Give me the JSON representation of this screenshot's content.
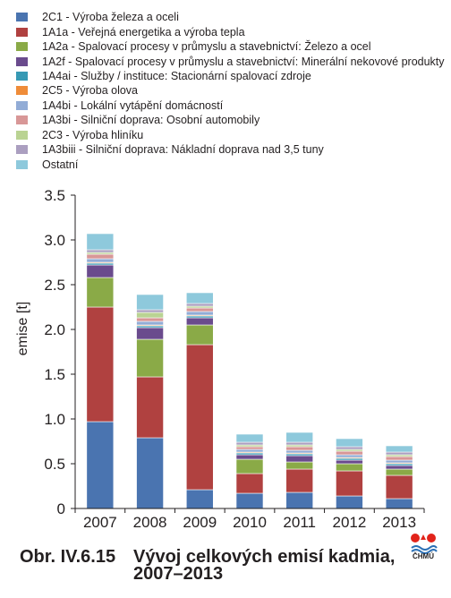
{
  "colors": {
    "2C1": "#4a74b0",
    "1A1a": "#b04140",
    "1A2a": "#8aaa47",
    "1A2f": "#6a4b8d",
    "1A4ai": "#3799b4",
    "2C5": "#ef8c39",
    "1A4bi": "#92acd6",
    "1A3bi": "#d89797",
    "2C3": "#bad393",
    "1A3biii": "#ab9fc0",
    "Ostatni": "#8ec9dc"
  },
  "chart_data": {
    "type": "bar",
    "stacked": true,
    "categories": [
      "2007",
      "2008",
      "2009",
      "2010",
      "2011",
      "2012",
      "2013"
    ],
    "ylabel": "emise [t]",
    "ylim": [
      0,
      3.5
    ],
    "yticks": [
      "0",
      "0.5",
      "1.0",
      "1.5",
      "2.0",
      "2.5",
      "3.0",
      "3.5"
    ],
    "legend_position": "top",
    "series": [
      {
        "key": "2C1",
        "name": "2C1 - Výroba železa a oceli",
        "values": [
          0.97,
          0.79,
          0.21,
          0.17,
          0.18,
          0.14,
          0.11
        ]
      },
      {
        "key": "1A1a",
        "name": "1A1a - Veřejná energetika a výroba tepla",
        "values": [
          1.28,
          0.68,
          1.62,
          0.22,
          0.26,
          0.28,
          0.26
        ]
      },
      {
        "key": "1A2a",
        "name": "1A2a - Spalovací procesy v průmyslu a stavebnictví: Železo a ocel",
        "values": [
          0.33,
          0.42,
          0.22,
          0.16,
          0.08,
          0.08,
          0.07
        ]
      },
      {
        "key": "1A2f",
        "name": "1A2f - Spalovací procesy v průmyslu a stavebnictví: Minerální nekovové produkty",
        "values": [
          0.14,
          0.13,
          0.08,
          0.05,
          0.07,
          0.04,
          0.04
        ]
      },
      {
        "key": "1A4ai",
        "name": "1A4ai - Služby / instituce: Stacionární spalovací zdroje",
        "values": [
          0.02,
          0.02,
          0.02,
          0.02,
          0.02,
          0.02,
          0.02
        ]
      },
      {
        "key": "2C5",
        "name": "2C5 - Výroba olova",
        "values": [
          0.01,
          0.01,
          0.01,
          0.01,
          0.01,
          0.01,
          0.01
        ]
      },
      {
        "key": "1A4bi",
        "name": "1A4bi - Lokální vytápění domácností",
        "values": [
          0.04,
          0.04,
          0.04,
          0.03,
          0.03,
          0.03,
          0.03
        ]
      },
      {
        "key": "1A3bi",
        "name": "1A3bi - Silniční doprava: Osobní automobily",
        "values": [
          0.05,
          0.04,
          0.04,
          0.03,
          0.04,
          0.04,
          0.04
        ]
      },
      {
        "key": "2C3",
        "name": "2C3 - Výroba hliníku",
        "values": [
          0.02,
          0.06,
          0.02,
          0.02,
          0.02,
          0.02,
          0.02
        ]
      },
      {
        "key": "1A3biii",
        "name": "1A3biii - Silniční doprava: Nákladní doprava nad 3,5 tuny",
        "values": [
          0.03,
          0.03,
          0.03,
          0.03,
          0.03,
          0.03,
          0.03
        ]
      },
      {
        "key": "Ostatni",
        "name": "Ostatní",
        "values": [
          0.18,
          0.17,
          0.12,
          0.09,
          0.11,
          0.09,
          0.07
        ]
      }
    ]
  },
  "caption": {
    "number": "Obr. IV.6.15",
    "text": "Vývoj celkových emisí kadmia, 2007–2013"
  },
  "logo": {
    "text": "ČHMÚ"
  }
}
